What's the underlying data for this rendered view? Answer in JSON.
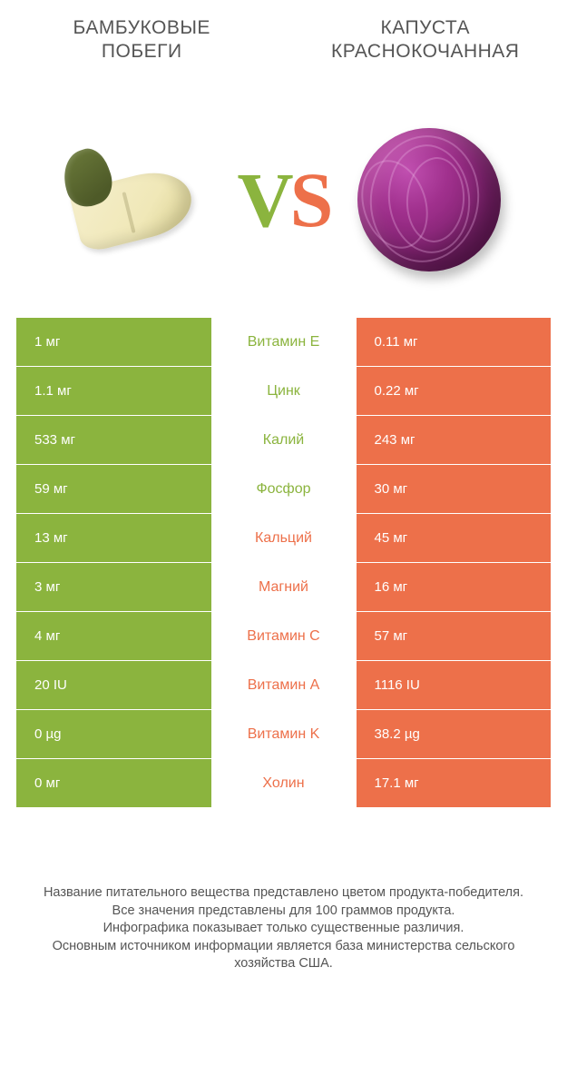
{
  "colors": {
    "left": "#8bb43e",
    "right": "#ed704a",
    "left_text": "#8bb43e",
    "right_text": "#ed704a",
    "footer_text": "#555555"
  },
  "header": {
    "left_line1": "БАМБУКОВЫЕ",
    "left_line2": "ПОБЕГИ",
    "right_line1": "КАПУСТА",
    "right_line2": "КРАСНОКОЧАННАЯ"
  },
  "vs": {
    "v": "V",
    "s": "S"
  },
  "rows": [
    {
      "left": "1 мг",
      "label": "Витамин E",
      "right": "0.11 мг",
      "winner": "left"
    },
    {
      "left": "1.1 мг",
      "label": "Цинк",
      "right": "0.22 мг",
      "winner": "left"
    },
    {
      "left": "533 мг",
      "label": "Калий",
      "right": "243 мг",
      "winner": "left"
    },
    {
      "left": "59 мг",
      "label": "Фосфор",
      "right": "30 мг",
      "winner": "left"
    },
    {
      "left": "13 мг",
      "label": "Кальций",
      "right": "45 мг",
      "winner": "right"
    },
    {
      "left": "3 мг",
      "label": "Магний",
      "right": "16 мг",
      "winner": "right"
    },
    {
      "left": "4 мг",
      "label": "Витамин C",
      "right": "57 мг",
      "winner": "right"
    },
    {
      "left": "20 IU",
      "label": "Витамин A",
      "right": "1116 IU",
      "winner": "right"
    },
    {
      "left": "0 µg",
      "label": "Витамин K",
      "right": "38.2 µg",
      "winner": "right"
    },
    {
      "left": "0 мг",
      "label": "Холин",
      "right": "17.1 мг",
      "winner": "right"
    }
  ],
  "footer": {
    "line1": "Название питательного вещества представлено цветом продукта-победителя.",
    "line2": "Все значения представлены для 100 граммов продукта.",
    "line3": "Инфографика показывает только существенные различия.",
    "line4": "Основным источником информации является база министерства сельского хозяйства США."
  }
}
